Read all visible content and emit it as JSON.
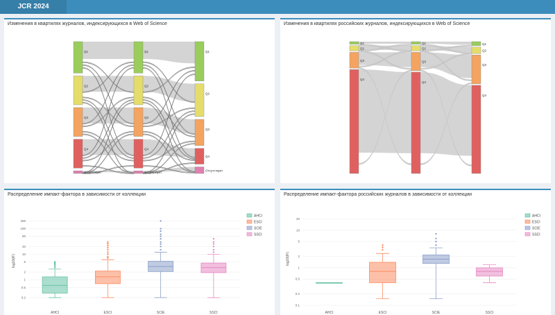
{
  "header": {
    "tab_label": "JCR 2024"
  },
  "panels": {
    "sankey_all_title": "Изменения в квартилях журналов, индексирующихся в Web of Science",
    "sankey_ru_title": "Изменения в квартилях российских журналов, индексирующихся в Web of Science",
    "box_all_title": "Распределение импакт-фактора в зависимости от коллекции",
    "box_ru_title": "Распределение импакт-фактора российских журналов в зависимости от коллекции"
  },
  "colors": {
    "Q1": "#9acd5c",
    "Q2": "#e5dd6b",
    "Q3": "#f4a460",
    "Q4": "#e06060",
    "other": "#e07fb0",
    "AHCI": "#66c2a5",
    "ESCI": "#fc8d62",
    "SCIE": "#8da0cb",
    "SSCI": "#e78ac3",
    "accent": "#3c8dbc"
  },
  "sankey_all": {
    "columns": [
      {
        "nodes": [
          {
            "label": "Q1",
            "share": 0.24
          },
          {
            "label": "Q2",
            "share": 0.22
          },
          {
            "label": "Q3",
            "share": 0.22
          },
          {
            "label": "Q4",
            "share": 0.22
          },
          {
            "label": "Отсутствует",
            "share": 0.02,
            "type": "other"
          }
        ]
      },
      {
        "nodes": [
          {
            "label": "Q1",
            "share": 0.24
          },
          {
            "label": "Q2",
            "share": 0.22
          },
          {
            "label": "Q3",
            "share": 0.22
          },
          {
            "label": "Q4",
            "share": 0.22
          },
          {
            "label": "Отсутствует",
            "share": 0.02,
            "type": "other"
          }
        ]
      },
      {
        "nodes": [
          {
            "label": "Q1",
            "share": 0.3
          },
          {
            "label": "Q2",
            "share": 0.25
          },
          {
            "label": "Q3",
            "share": 0.2
          },
          {
            "label": "Q4",
            "share": 0.12
          },
          {
            "label": "Отсутствует",
            "share": 0.05,
            "type": "other"
          }
        ]
      }
    ]
  },
  "sankey_ru": {
    "columns": [
      {
        "nodes": [
          {
            "label": "Q1",
            "share": 0.02
          },
          {
            "label": "Q2",
            "share": 0.04
          },
          {
            "label": "Q3",
            "share": 0.12
          },
          {
            "label": "Q4",
            "share": 0.79
          }
        ]
      },
      {
        "nodes": [
          {
            "label": "Q1",
            "share": 0.02
          },
          {
            "label": "Q2",
            "share": 0.04
          },
          {
            "label": "Q3",
            "share": 0.14
          },
          {
            "label": "Q4",
            "share": 0.77
          }
        ]
      },
      {
        "nodes": [
          {
            "label": "Q1",
            "share": 0.03
          },
          {
            "label": "Q2",
            "share": 0.05
          },
          {
            "label": "Q3",
            "share": 0.22
          },
          {
            "label": "Q4",
            "share": 0.67
          }
        ]
      }
    ]
  },
  "chart_data": [
    {
      "type": "box",
      "title": "Распределение импакт-фактора в зависимости от коллекции",
      "ylabel": "log10(IF)",
      "yscale": "log",
      "ylim": [
        0.1,
        300
      ],
      "yticks": [
        "0.2",
        "0.5",
        "1",
        "2",
        "5",
        "10",
        "20",
        "50",
        "100",
        "200"
      ],
      "categories": [
        "AHCI",
        "ESCI",
        "SCIE",
        "SSCI"
      ],
      "legend": [
        "AHCI",
        "ESCI",
        "SCIE",
        "SSCI"
      ],
      "legend_position": "right",
      "series": [
        {
          "name": "AHCI",
          "min": 0.2,
          "q1": 0.3,
          "median": 0.6,
          "q3": 1.3,
          "max": 2.6,
          "outliers": [
            3,
            3.5,
            4,
            4.5,
            5
          ]
        },
        {
          "name": "ESCI",
          "min": 0.2,
          "q1": 0.7,
          "median": 1.3,
          "q3": 2.2,
          "max": 6,
          "outliers": [
            7,
            8,
            10,
            12,
            15,
            18,
            22,
            26,
            30
          ]
        },
        {
          "name": "SCIE",
          "min": 0.2,
          "q1": 2.1,
          "median": 3.3,
          "q3": 5.3,
          "max": 12,
          "outliers": [
            15,
            20,
            25,
            30,
            40,
            50,
            60,
            80,
            100,
            200
          ]
        },
        {
          "name": "SSCI",
          "min": 0.2,
          "q1": 1.9,
          "median": 3.0,
          "q3": 4.5,
          "max": 10,
          "outliers": [
            12,
            15,
            20,
            25,
            30,
            40
          ]
        }
      ]
    },
    {
      "type": "box",
      "title": "Распределение импакт-фактора российских журналов в зависимости от коллекции",
      "ylabel": "log10(IF)",
      "yscale": "log",
      "ylim": [
        0.1,
        30
      ],
      "yticks": [
        "0.1",
        "0.2",
        "0.5",
        "1",
        "2",
        "5",
        "10",
        "20"
      ],
      "categories": [
        "AHCI",
        "ESCI",
        "SCIE",
        "SSCI"
      ],
      "legend": [
        "AHCI",
        "ESCI",
        "SCIE",
        "SSCI"
      ],
      "legend_position": "right",
      "series": [
        {
          "name": "AHCI",
          "min": 0.4,
          "q1": 0.4,
          "median": 0.4,
          "q3": 0.4,
          "max": 0.4,
          "outliers": []
        },
        {
          "name": "ESCI",
          "min": 0.15,
          "q1": 0.4,
          "median": 0.8,
          "q3": 1.4,
          "max": 2.4,
          "outliers": [
            3,
            3.5,
            4
          ]
        },
        {
          "name": "SCIE",
          "min": 0.15,
          "q1": 1.3,
          "median": 1.7,
          "q3": 2.2,
          "max": 3.4,
          "outliers": [
            4,
            5,
            6,
            8
          ]
        },
        {
          "name": "SSCI",
          "min": 0.4,
          "q1": 0.6,
          "median": 0.8,
          "q3": 1.0,
          "max": 1.2,
          "outliers": []
        }
      ]
    }
  ]
}
